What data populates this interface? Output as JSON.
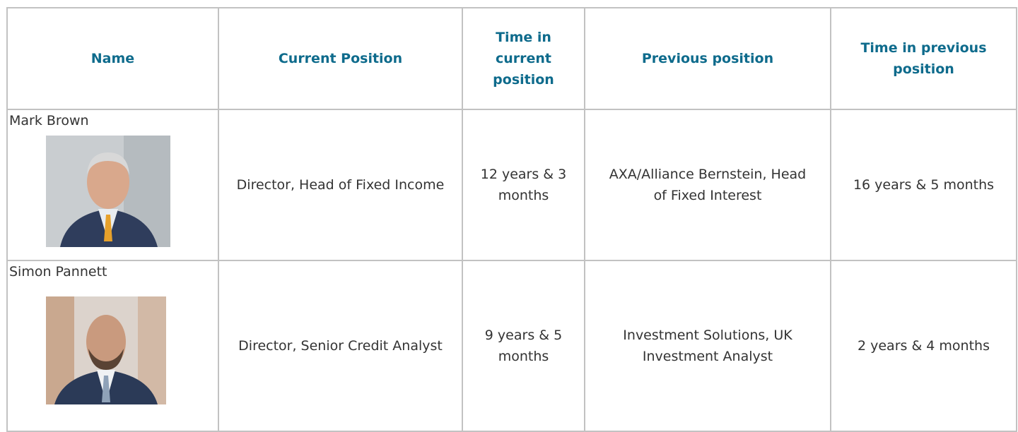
{
  "table": {
    "header": [
      "Name",
      "Current Position",
      "Time in current position",
      "Previous position",
      "Time in previous position"
    ],
    "rows": [
      [
        "Mark Brown",
        "Director, Head of Fixed Income",
        "12 years & 3 months",
        "AXA/Alliance Bernstein, Head of Fixed Interest",
        "16 years & 5 months"
      ],
      [
        "Simon Pannett",
        "Director, Senior Credit Analyst",
        "9 years & 5 months",
        "Investment Solutions, UK Investment Analyst",
        "2 years & 4 months"
      ]
    ]
  }
}
